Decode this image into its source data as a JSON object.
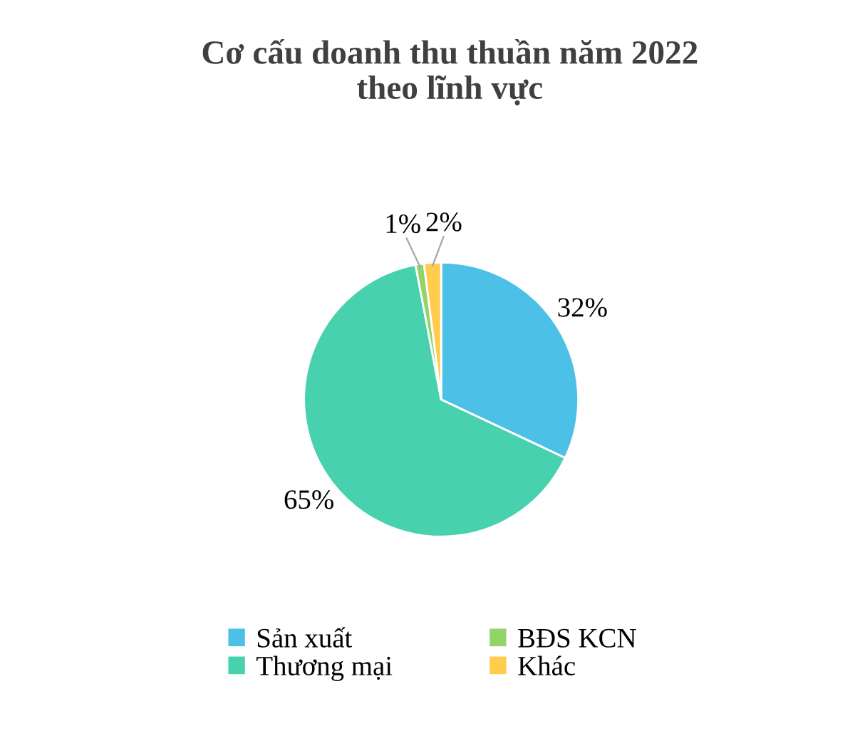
{
  "chart_data": {
    "type": "pie",
    "title": "Cơ cấu doanh thu thuần năm 2022\ntheo lĩnh vực",
    "categories": [
      "Sản xuất",
      "Thương mại",
      "BĐS KCN",
      "Khác"
    ],
    "values": [
      32,
      65,
      1,
      2
    ],
    "colors": [
      "#4dc0e8",
      "#47d1ae",
      "#92d468",
      "#ffcc4d"
    ],
    "value_labels": [
      "32%",
      "65%",
      "1%",
      "2%"
    ],
    "legend": "bottom"
  }
}
